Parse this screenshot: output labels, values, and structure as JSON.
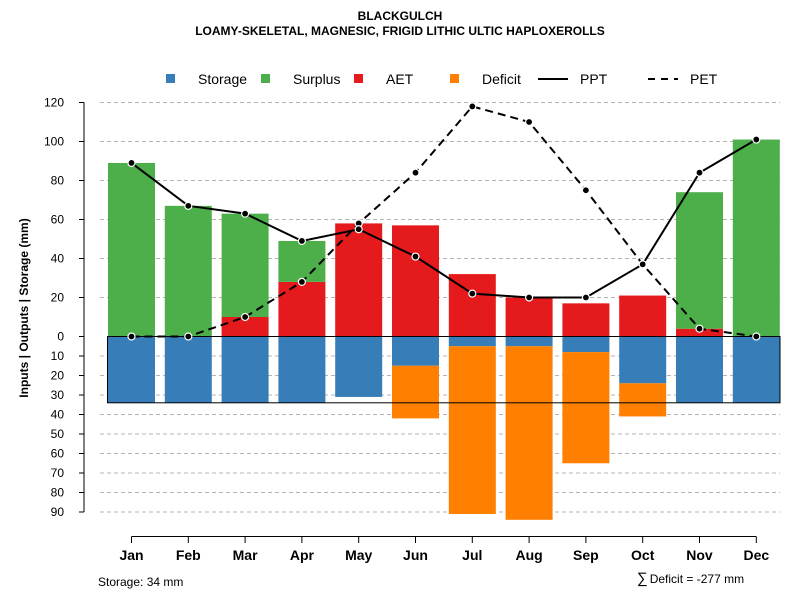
{
  "title": "BLACKGULCH",
  "subtitle": "LOAMY-SKELETAL, MAGNESIC, FRIGID LITHIC ULTIC HAPLOXEROLLS",
  "chart_data": {
    "type": "bar",
    "categories": [
      "Jan",
      "Feb",
      "Mar",
      "Apr",
      "May",
      "Jun",
      "Jul",
      "Aug",
      "Sep",
      "Oct",
      "Nov",
      "Dec"
    ],
    "ylabel": "Inputs | Outputs | Storage    (mm)",
    "ylim_upper": [
      0,
      120
    ],
    "ylim_lower": [
      0,
      90
    ],
    "yticks_upper": [
      "0",
      "20",
      "40",
      "60",
      "80",
      "100",
      "120"
    ],
    "yticks_lower": [
      "10",
      "20",
      "30",
      "40",
      "50",
      "60",
      "70",
      "80",
      "90"
    ],
    "grid": true,
    "legend": [
      {
        "name": "Storage",
        "kind": "box",
        "color": "#377EB8"
      },
      {
        "name": "Surplus",
        "kind": "box",
        "color": "#4DAF4A"
      },
      {
        "name": "AET",
        "kind": "box",
        "color": "#E41A1C"
      },
      {
        "name": "Deficit",
        "kind": "box",
        "color": "#FF7F00"
      },
      {
        "name": "PPT",
        "kind": "solid",
        "color": "#000000"
      },
      {
        "name": "PET",
        "kind": "dashed",
        "color": "#000000"
      }
    ],
    "series": [
      {
        "name": "Surplus",
        "color": "#4DAF4A",
        "values": [
          89,
          67,
          53,
          21,
          0,
          0,
          0,
          0,
          0,
          0,
          70,
          101
        ]
      },
      {
        "name": "AET",
        "color": "#E41A1C",
        "values": [
          0,
          0,
          10,
          28,
          58,
          57,
          32,
          20,
          17,
          21,
          4,
          0
        ]
      },
      {
        "name": "Storage",
        "color": "#377EB8",
        "values": [
          34,
          34,
          34,
          34,
          31,
          15,
          5,
          5,
          8,
          24,
          34,
          34
        ]
      },
      {
        "name": "Deficit",
        "color": "#FF7F00",
        "values": [
          0,
          0,
          0,
          0,
          0,
          27,
          86,
          89,
          57,
          17,
          0,
          0
        ]
      },
      {
        "name": "PPT",
        "color": "#000000",
        "values": [
          89,
          67,
          63,
          49,
          55,
          41,
          22,
          20,
          20,
          37,
          84,
          101
        ]
      },
      {
        "name": "PET",
        "color": "#000000",
        "values": [
          0,
          0,
          10,
          28,
          58,
          84,
          118,
          110,
          75,
          37,
          4,
          0
        ]
      }
    ],
    "storage_capacity": 34,
    "storage_note": "Storage: 34 mm",
    "deficit_note": "Deficit = -277 mm",
    "deficit_symbol": "∑"
  }
}
